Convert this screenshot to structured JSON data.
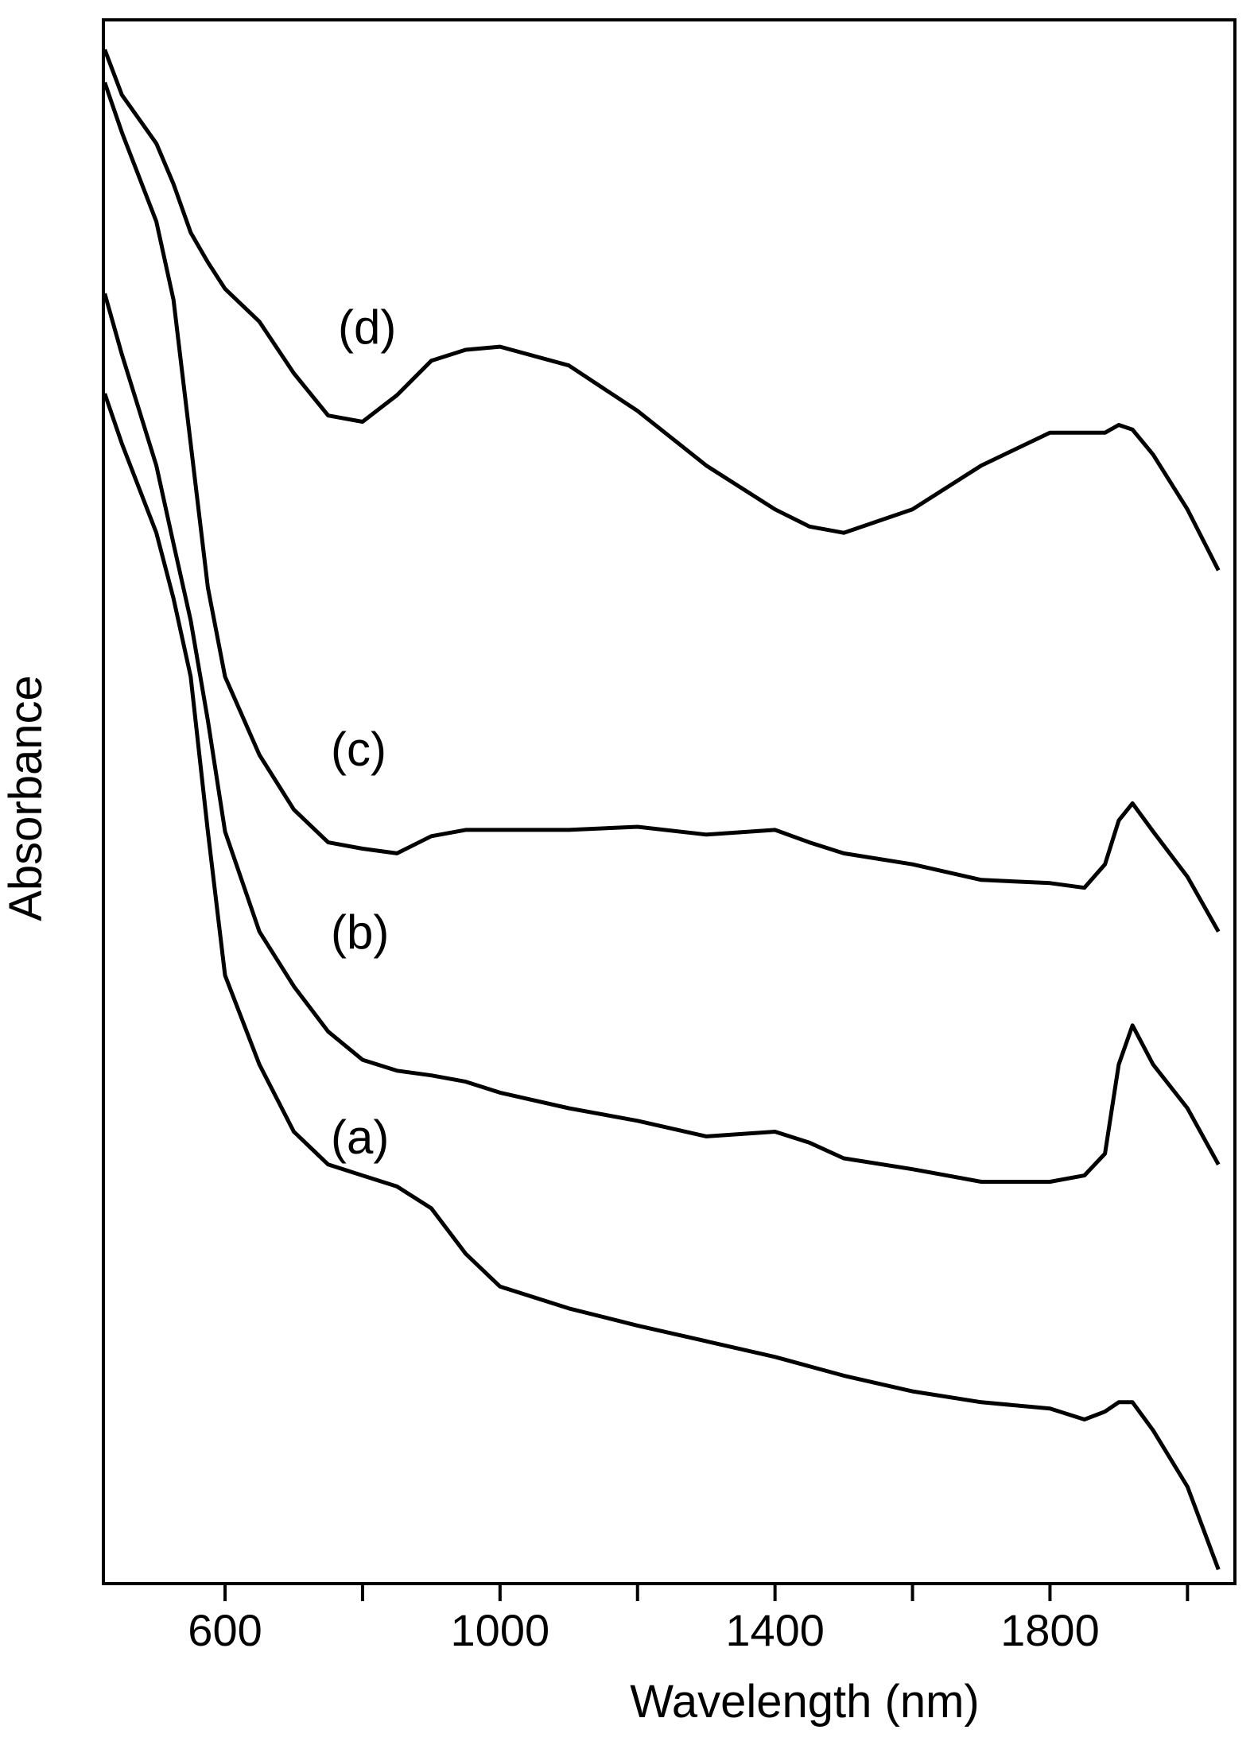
{
  "chart_data": {
    "type": "line",
    "x_label": "Wavelength (nm)",
    "y_label": "Absorbance",
    "x": [
      425,
      450,
      500,
      525,
      550,
      575,
      600,
      650,
      700,
      750,
      800,
      850,
      900,
      950,
      1000,
      1100,
      1200,
      1300,
      1400,
      1450,
      1500,
      1600,
      1700,
      1800,
      1850,
      1880,
      1900,
      1920,
      1950,
      2000,
      2045
    ],
    "series": [
      {
        "name": "(a)",
        "color": "#000000",
        "values": [
          76.1,
          72.9,
          67.2,
          63.0,
          58.0,
          48.1,
          38.9,
          33.2,
          28.9,
          26.8,
          26.1,
          25.4,
          24.0,
          21.1,
          19.0,
          17.6,
          16.5,
          15.5,
          14.5,
          13.9,
          13.3,
          12.3,
          11.6,
          11.2,
          10.5,
          11.0,
          11.6,
          11.6,
          9.8,
          6.2,
          0.9
        ]
      },
      {
        "name": "(b)",
        "color": "#000000",
        "values": [
          82.5,
          78.6,
          71.5,
          66.5,
          61.6,
          55.2,
          48.1,
          41.7,
          38.2,
          35.3,
          33.5,
          32.8,
          32.5,
          32.1,
          31.4,
          30.4,
          29.6,
          28.6,
          28.9,
          28.2,
          27.2,
          26.5,
          25.7,
          25.7,
          26.1,
          27.5,
          33.2,
          35.7,
          33.2,
          30.4,
          26.8
        ]
      },
      {
        "name": "(c)",
        "color": "#000000",
        "values": [
          96.0,
          92.8,
          87.1,
          82.1,
          72.9,
          63.7,
          58.0,
          53.0,
          49.5,
          47.4,
          47.0,
          46.7,
          47.8,
          48.2,
          48.2,
          48.2,
          48.4,
          47.9,
          48.2,
          47.4,
          46.7,
          46.0,
          45.0,
          44.8,
          44.5,
          46.0,
          48.8,
          49.9,
          48.1,
          45.2,
          41.7
        ]
      },
      {
        "name": "(d)",
        "color": "#000000",
        "values": [
          98.1,
          95.2,
          92.1,
          89.5,
          86.4,
          84.5,
          82.8,
          80.7,
          77.4,
          74.7,
          74.3,
          76.0,
          78.2,
          78.9,
          79.1,
          77.9,
          75.0,
          71.5,
          68.7,
          67.6,
          67.2,
          68.7,
          71.5,
          73.6,
          73.6,
          73.6,
          74.1,
          73.8,
          72.2,
          68.7,
          64.8
        ]
      }
    ],
    "xlim": [
      423,
      2069
    ],
    "ylim": [
      0,
      100
    ],
    "xticks": [
      600,
      1000,
      1400,
      1800
    ],
    "xminor_ticks": [
      800,
      1200,
      1600,
      2000
    ]
  }
}
